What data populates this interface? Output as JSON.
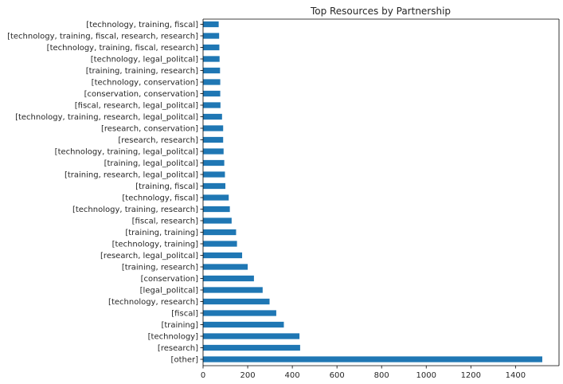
{
  "chart_data": {
    "type": "bar",
    "orientation": "horizontal",
    "title": "Top Resources by Partnership",
    "xlabel": "",
    "ylabel": "",
    "xlim": [
      0,
      1595
    ],
    "xticks": [
      0,
      200,
      400,
      600,
      800,
      1000,
      1200,
      1400
    ],
    "bar_color": "#1f77b4",
    "grid": false,
    "categories": [
      "[other]",
      "[research]",
      "[technology]",
      "[training]",
      "[fiscal]",
      "[technology, research]",
      "[legal_politcal]",
      "[conservation]",
      "[training, research]",
      "[research, legal_politcal]",
      "[technology, training]",
      "[training, training]",
      "[fiscal, research]",
      "[technology, training, research]",
      "[technology, fiscal]",
      "[training, fiscal]",
      "[training, research, legal_politcal]",
      "[training, legal_politcal]",
      "[technology, training, legal_politcal]",
      "[research, research]",
      "[research, conservation]",
      "[technology, training, research, legal_politcal]",
      "[fiscal, research, legal_politcal]",
      "[conservation, conservation]",
      "[technology, conservation]",
      "[training, training, research]",
      "[technology, legal_politcal]",
      "[technology, training, fiscal, research]",
      "[technology, training, fiscal, research, research]",
      "[technology, training, fiscal]"
    ],
    "values": [
      1520,
      435,
      432,
      362,
      328,
      298,
      267,
      228,
      200,
      175,
      152,
      148,
      128,
      120,
      115,
      100,
      98,
      95,
      92,
      90,
      90,
      85,
      78,
      77,
      77,
      76,
      74,
      73,
      72,
      70
    ]
  }
}
